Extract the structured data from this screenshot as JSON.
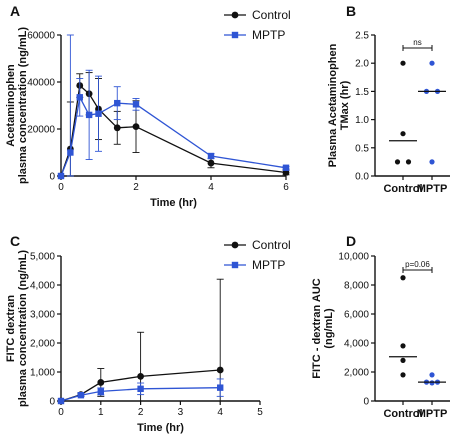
{
  "colors": {
    "control": "#111111",
    "mptp": "#2f55d4"
  },
  "chart_data": [
    {
      "panel": "A",
      "type": "line",
      "xlabel": "Time (hr)",
      "ylabel": [
        "Acetaminophen",
        "plasma concentration (ng/mL)"
      ],
      "xlim": [
        0,
        6
      ],
      "ylim": [
        0,
        60000
      ],
      "xticks": [
        0,
        2,
        4,
        6
      ],
      "yticks": [
        0,
        20000,
        40000,
        60000
      ],
      "legend_position": "top-right",
      "series": [
        {
          "name": "Control",
          "color": "#111111",
          "marker": "circle",
          "points": [
            {
              "x": 0,
              "y": 0,
              "err": 0
            },
            {
              "x": 0.25,
              "y": 11500,
              "err": 20000
            },
            {
              "x": 0.5,
              "y": 38500,
              "err": 5000
            },
            {
              "x": 0.75,
              "y": 35000,
              "err": 9000
            },
            {
              "x": 1,
              "y": 28500,
              "err": 13000
            },
            {
              "x": 1.5,
              "y": 20500,
              "err": 7000
            },
            {
              "x": 2,
              "y": 21000,
              "err": 11000
            },
            {
              "x": 4,
              "y": 5500,
              "err": 2000
            },
            {
              "x": 6,
              "y": 1500,
              "err": 1000
            }
          ]
        },
        {
          "name": "MPTP",
          "color": "#2f55d4",
          "marker": "square",
          "points": [
            {
              "x": 0,
              "y": 0,
              "err": 0
            },
            {
              "x": 0.25,
              "y": 10000,
              "err": 50000
            },
            {
              "x": 0.5,
              "y": 33500,
              "err": 8000
            },
            {
              "x": 0.75,
              "y": 26000,
              "err": 19000
            },
            {
              "x": 1,
              "y": 26500,
              "err": 16000
            },
            {
              "x": 1.5,
              "y": 31000,
              "err": 7000
            },
            {
              "x": 2,
              "y": 30500,
              "err": 2500
            },
            {
              "x": 4,
              "y": 8500,
              "err": 1000
            },
            {
              "x": 6,
              "y": 3500,
              "err": 500
            }
          ]
        }
      ]
    },
    {
      "panel": "B",
      "type": "scatter",
      "ylabel": [
        "Plasma Acetaminophen",
        "TMax (hr)"
      ],
      "ylim": [
        0,
        2.5
      ],
      "yticks": [
        0,
        0.5,
        1.0,
        1.5,
        2.0,
        2.5
      ],
      "categories": [
        "Control",
        "MPTP"
      ],
      "groups": [
        {
          "name": "Control",
          "color": "#111111",
          "values": [
            2.0,
            0.75,
            0.25,
            0.25
          ],
          "median": 0.625
        },
        {
          "name": "MPTP",
          "color": "#2f55d4",
          "values": [
            2.0,
            1.5,
            1.5,
            0.25
          ],
          "median": 1.5
        }
      ],
      "annotation": "ns"
    },
    {
      "panel": "C",
      "type": "line",
      "xlabel": "Time (hr)",
      "ylabel": [
        "FITC dextran",
        "plasma concentration (ng/mL)"
      ],
      "xlim": [
        0,
        5
      ],
      "ylim": [
        0,
        5000
      ],
      "xticks": [
        0,
        1,
        2,
        3,
        4,
        5
      ],
      "yticks": [
        0,
        1000,
        2000,
        3000,
        4000,
        5000
      ],
      "legend_position": "top-right",
      "series": [
        {
          "name": "Control",
          "color": "#111111",
          "marker": "circle",
          "points": [
            {
              "x": 0,
              "y": 0,
              "err": 0
            },
            {
              "x": 0.5,
              "y": 220,
              "err": 60
            },
            {
              "x": 1,
              "y": 640,
              "err": 480
            },
            {
              "x": 2,
              "y": 850,
              "err": 1520
            },
            {
              "x": 4,
              "y": 1070,
              "err": 3130
            }
          ]
        },
        {
          "name": "MPTP",
          "color": "#2f55d4",
          "marker": "square",
          "points": [
            {
              "x": 0,
              "y": 0,
              "err": 0
            },
            {
              "x": 0.5,
              "y": 200,
              "err": 40
            },
            {
              "x": 1,
              "y": 330,
              "err": 120
            },
            {
              "x": 2,
              "y": 420,
              "err": 200
            },
            {
              "x": 4,
              "y": 460,
              "err": 300
            }
          ]
        }
      ]
    },
    {
      "panel": "D",
      "type": "scatter",
      "ylabel": [
        "FITC - dextran AUC",
        "(ng/mL)"
      ],
      "ylim": [
        0,
        10000
      ],
      "yticks": [
        0,
        2000,
        4000,
        6000,
        8000,
        10000
      ],
      "categories": [
        "Control",
        "MPTP"
      ],
      "groups": [
        {
          "name": "Control",
          "color": "#111111",
          "values": [
            8500,
            3800,
            2800,
            1800
          ],
          "median": 3050
        },
        {
          "name": "MPTP",
          "color": "#2f55d4",
          "values": [
            1800,
            1300,
            1300,
            1250
          ],
          "median": 1300
        }
      ],
      "annotation": "p=0.06"
    }
  ]
}
